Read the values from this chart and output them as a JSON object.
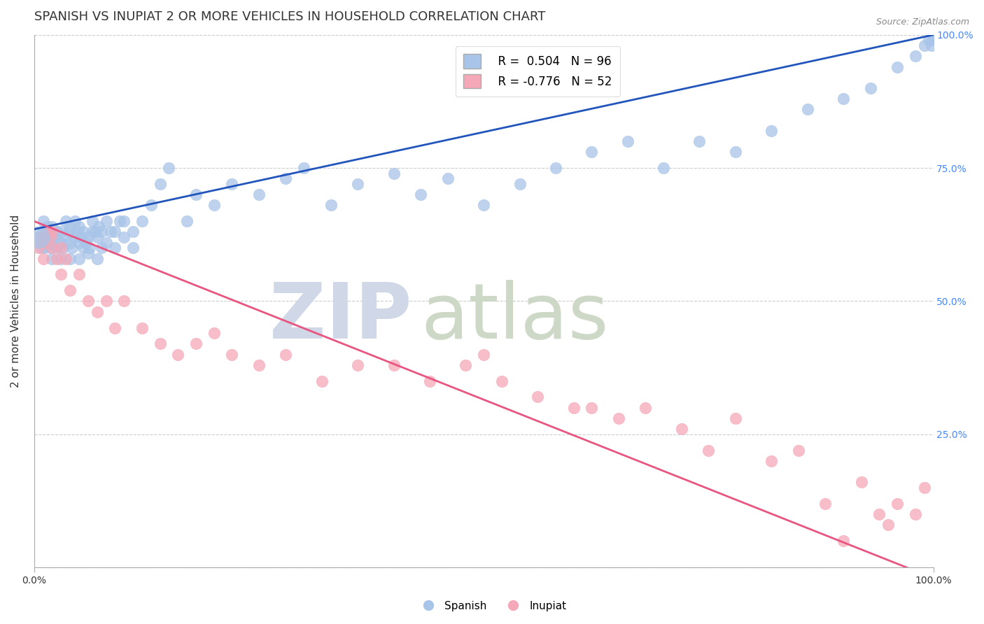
{
  "title": "SPANISH VS INUPIAT 2 OR MORE VEHICLES IN HOUSEHOLD CORRELATION CHART",
  "source": "Source: ZipAtlas.com",
  "ylabel": "2 or more Vehicles in Household",
  "xlabel": "",
  "xlim": [
    0,
    1
  ],
  "ylim": [
    0,
    1
  ],
  "blue_R": 0.504,
  "blue_N": 96,
  "pink_R": -0.776,
  "pink_N": 52,
  "blue_color": "#a8c4e8",
  "pink_color": "#f5a8b8",
  "blue_line_color": "#2255bb",
  "pink_line_color": "#e85580",
  "background_color": "#ffffff",
  "grid_color": "#cccccc",
  "title_fontsize": 13,
  "label_fontsize": 11,
  "tick_fontsize": 10,
  "right_tick_color": "#4488ff",
  "blue_line_y0": 0.635,
  "blue_line_y1": 1.0,
  "pink_line_y0": 0.65,
  "pink_line_y1": -0.02,
  "spanish_x": [
    0.005,
    0.008,
    0.01,
    0.01,
    0.01,
    0.012,
    0.015,
    0.015,
    0.018,
    0.018,
    0.02,
    0.02,
    0.02,
    0.022,
    0.025,
    0.025,
    0.028,
    0.03,
    0.03,
    0.03,
    0.032,
    0.035,
    0.035,
    0.038,
    0.04,
    0.04,
    0.04,
    0.042,
    0.045,
    0.045,
    0.048,
    0.05,
    0.05,
    0.05,
    0.052,
    0.055,
    0.055,
    0.058,
    0.06,
    0.06,
    0.062,
    0.065,
    0.065,
    0.068,
    0.07,
    0.07,
    0.072,
    0.075,
    0.075,
    0.08,
    0.08,
    0.085,
    0.09,
    0.09,
    0.095,
    0.1,
    0.1,
    0.11,
    0.11,
    0.12,
    0.13,
    0.14,
    0.15,
    0.17,
    0.18,
    0.2,
    0.22,
    0.25,
    0.28,
    0.3,
    0.33,
    0.36,
    0.4,
    0.43,
    0.46,
    0.5,
    0.54,
    0.58,
    0.62,
    0.66,
    0.7,
    0.74,
    0.78,
    0.82,
    0.86,
    0.9,
    0.93,
    0.96,
    0.98,
    0.99,
    0.995,
    0.998,
    0.999,
    1.0,
    1.0,
    1.0
  ],
  "spanish_y": [
    0.62,
    0.6,
    0.61,
    0.63,
    0.65,
    0.6,
    0.62,
    0.64,
    0.6,
    0.63,
    0.58,
    0.61,
    0.64,
    0.62,
    0.6,
    0.63,
    0.61,
    0.58,
    0.61,
    0.63,
    0.6,
    0.62,
    0.65,
    0.63,
    0.58,
    0.61,
    0.64,
    0.6,
    0.62,
    0.65,
    0.63,
    0.58,
    0.61,
    0.64,
    0.62,
    0.6,
    0.63,
    0.61,
    0.59,
    0.62,
    0.6,
    0.63,
    0.65,
    0.63,
    0.58,
    0.62,
    0.64,
    0.6,
    0.63,
    0.65,
    0.61,
    0.63,
    0.6,
    0.63,
    0.65,
    0.62,
    0.65,
    0.6,
    0.63,
    0.65,
    0.68,
    0.72,
    0.75,
    0.65,
    0.7,
    0.68,
    0.72,
    0.7,
    0.73,
    0.75,
    0.68,
    0.72,
    0.74,
    0.7,
    0.73,
    0.68,
    0.72,
    0.75,
    0.78,
    0.8,
    0.75,
    0.8,
    0.78,
    0.82,
    0.86,
    0.88,
    0.9,
    0.94,
    0.96,
    0.98,
    0.99,
    0.98,
    0.99,
    1.0,
    1.0,
    1.0
  ],
  "inupiat_x": [
    0.005,
    0.008,
    0.01,
    0.01,
    0.015,
    0.018,
    0.02,
    0.02,
    0.025,
    0.03,
    0.03,
    0.035,
    0.04,
    0.05,
    0.06,
    0.07,
    0.08,
    0.09,
    0.1,
    0.12,
    0.14,
    0.16,
    0.18,
    0.2,
    0.22,
    0.25,
    0.28,
    0.32,
    0.36,
    0.4,
    0.44,
    0.48,
    0.5,
    0.52,
    0.56,
    0.6,
    0.62,
    0.65,
    0.68,
    0.72,
    0.75,
    0.78,
    0.82,
    0.85,
    0.88,
    0.9,
    0.92,
    0.94,
    0.95,
    0.96,
    0.98,
    0.99
  ],
  "inupiat_y": [
    0.6,
    0.62,
    0.58,
    0.61,
    0.63,
    0.62,
    0.6,
    0.63,
    0.58,
    0.6,
    0.55,
    0.58,
    0.52,
    0.55,
    0.5,
    0.48,
    0.5,
    0.45,
    0.5,
    0.45,
    0.42,
    0.4,
    0.42,
    0.44,
    0.4,
    0.38,
    0.4,
    0.35,
    0.38,
    0.38,
    0.35,
    0.38,
    0.4,
    0.35,
    0.32,
    0.3,
    0.3,
    0.28,
    0.3,
    0.26,
    0.22,
    0.28,
    0.2,
    0.22,
    0.12,
    0.05,
    0.16,
    0.1,
    0.08,
    0.12,
    0.1,
    0.15
  ]
}
